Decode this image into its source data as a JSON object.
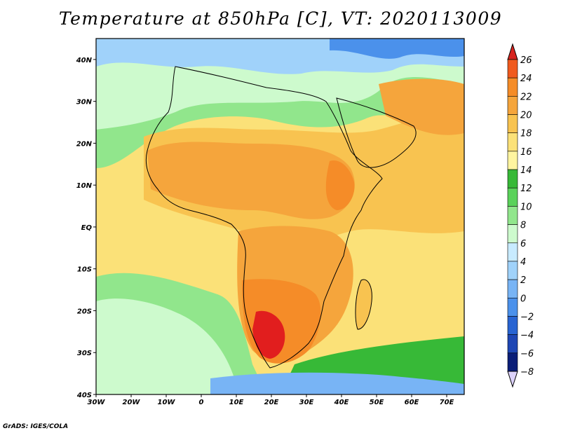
{
  "title": "Temperature at 850hPa [C], VT: 2020113009",
  "credit": "GrADS: IGES/COLA",
  "map": {
    "lon_range": [
      -30,
      75
    ],
    "lat_range": [
      -40,
      45
    ],
    "x_ticks": [
      {
        "value": -30,
        "label": "30W"
      },
      {
        "value": -20,
        "label": "20W"
      },
      {
        "value": -10,
        "label": "10W"
      },
      {
        "value": 0,
        "label": "0"
      },
      {
        "value": 10,
        "label": "10E"
      },
      {
        "value": 20,
        "label": "20E"
      },
      {
        "value": 30,
        "label": "30E"
      },
      {
        "value": 40,
        "label": "40E"
      },
      {
        "value": 50,
        "label": "50E"
      },
      {
        "value": 60,
        "label": "60E"
      },
      {
        "value": 70,
        "label": "70E"
      }
    ],
    "y_ticks": [
      {
        "value": 40,
        "label": "40N"
      },
      {
        "value": 30,
        "label": "30N"
      },
      {
        "value": 20,
        "label": "20N"
      },
      {
        "value": 10,
        "label": "10N"
      },
      {
        "value": 0,
        "label": "EQ"
      },
      {
        "value": -10,
        "label": "10S"
      },
      {
        "value": -20,
        "label": "20S"
      },
      {
        "value": -30,
        "label": "30S"
      },
      {
        "value": -40,
        "label": "40S"
      }
    ]
  },
  "colorbar": {
    "levels": [
      26,
      24,
      22,
      20,
      18,
      16,
      14,
      12,
      10,
      8,
      6,
      4,
      2,
      0,
      -2,
      -4,
      -6,
      -8
    ],
    "colors": [
      "#e11e1e",
      "#f05a1e",
      "#f58c28",
      "#f5a53c",
      "#f8c350",
      "#fbe178",
      "#fff5a0",
      "#37b937",
      "#5ad25a",
      "#91e68c",
      "#cdfacd",
      "#c8ebff",
      "#a0d2fa",
      "#78b4f5",
      "#4b91eb",
      "#2864d2",
      "#1e46b4",
      "#0a1e78"
    ],
    "top_arrow_color": "#d7231e",
    "bottom_arrow_color": "#dcd2fa"
  },
  "fields": {
    "land_outline_color": "#000000",
    "sea_north_color": "#cdfacd",
    "sahara_color": "#f5a53c"
  }
}
